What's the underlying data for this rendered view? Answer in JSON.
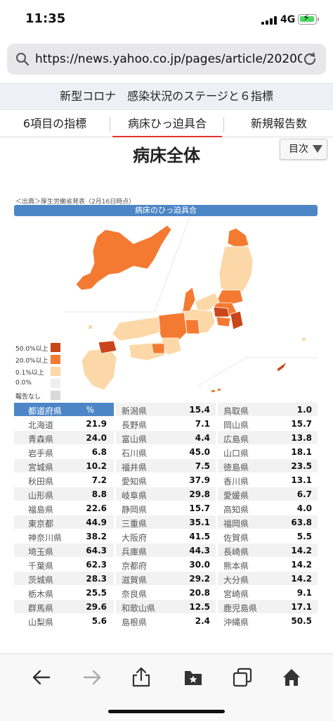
{
  "status": {
    "time": "11:35",
    "network": "4G"
  },
  "browser": {
    "url": "https://news.yahoo.co.jp/pages/article/202008..."
  },
  "article": {
    "title": "新型コロナ　感染状況のステージと６指標"
  },
  "tabs": [
    {
      "label": "6項目の指標"
    },
    {
      "label": "病床ひっ迫具合"
    },
    {
      "label": "新規報告数"
    }
  ],
  "section": {
    "title": "病床全体",
    "toc_label": "目次"
  },
  "infographic": {
    "source": "＜出典＞厚生労働省発表（2月16日時点）",
    "header": "病床のひっ迫具合",
    "legend": [
      {
        "label": "50.0%以上",
        "color": "#c9461a"
      },
      {
        "label": "20.0%以上",
        "color": "#f47a32"
      },
      {
        "label": "0.1%以上",
        "color": "#fcd8a8"
      },
      {
        "label": "0.0%",
        "color": "#eeeeee"
      },
      {
        "label": "報告なし",
        "color": "#d8d8d8"
      }
    ],
    "colors": {
      "high": "#c9461a",
      "mid": "#f47a32",
      "low": "#fcd8a8",
      "header": "#4c86c6"
    }
  },
  "table": {
    "head": {
      "name": "都道府県",
      "value": "%"
    },
    "col1": [
      {
        "name": "北海道",
        "value": "21.9"
      },
      {
        "name": "青森県",
        "value": "24.0"
      },
      {
        "name": "岩手県",
        "value": "6.8"
      },
      {
        "name": "宮城県",
        "value": "10.2"
      },
      {
        "name": "秋田県",
        "value": "7.2"
      },
      {
        "name": "山形県",
        "value": "8.8"
      },
      {
        "name": "福島県",
        "value": "22.6"
      },
      {
        "name": "東京都",
        "value": "44.9"
      },
      {
        "name": "神奈川県",
        "value": "38.2"
      },
      {
        "name": "埼玉県",
        "value": "64.3"
      },
      {
        "name": "千葉県",
        "value": "62.3"
      },
      {
        "name": "茨城県",
        "value": "28.3"
      },
      {
        "name": "栃木県",
        "value": "25.5"
      },
      {
        "name": "群馬県",
        "value": "29.6"
      },
      {
        "name": "山梨県",
        "value": "5.6"
      }
    ],
    "col2": [
      {
        "name": "新潟県",
        "value": "15.4"
      },
      {
        "name": "長野県",
        "value": "7.1"
      },
      {
        "name": "富山県",
        "value": "4.4"
      },
      {
        "name": "石川県",
        "value": "45.0"
      },
      {
        "name": "福井県",
        "value": "7.5"
      },
      {
        "name": "愛知県",
        "value": "37.9"
      },
      {
        "name": "岐阜県",
        "value": "29.8"
      },
      {
        "name": "静岡県",
        "value": "15.7"
      },
      {
        "name": "三重県",
        "value": "35.1"
      },
      {
        "name": "大阪府",
        "value": "41.5"
      },
      {
        "name": "兵庫県",
        "value": "44.3"
      },
      {
        "name": "京都府",
        "value": "30.0"
      },
      {
        "name": "滋賀県",
        "value": "29.2"
      },
      {
        "name": "奈良県",
        "value": "20.8"
      },
      {
        "name": "和歌山県",
        "value": "12.5"
      },
      {
        "name": "島根県",
        "value": "2.4"
      }
    ],
    "col3": [
      {
        "name": "鳥取県",
        "value": "1.0"
      },
      {
        "name": "岡山県",
        "value": "15.7"
      },
      {
        "name": "広島県",
        "value": "13.8"
      },
      {
        "name": "山口県",
        "value": "18.1"
      },
      {
        "name": "徳島県",
        "value": "23.5"
      },
      {
        "name": "香川県",
        "value": "13.1"
      },
      {
        "name": "愛媛県",
        "value": "6.7"
      },
      {
        "name": "高知県",
        "value": "4.0"
      },
      {
        "name": "福岡県",
        "value": "63.8"
      },
      {
        "name": "佐賀県",
        "value": "5.5"
      },
      {
        "name": "長崎県",
        "value": "14.2"
      },
      {
        "name": "熊本県",
        "value": "14.2"
      },
      {
        "name": "大分県",
        "value": "14.2"
      },
      {
        "name": "宮崎県",
        "value": "9.1"
      },
      {
        "name": "鹿児島県",
        "value": "17.1"
      },
      {
        "name": "沖縄県",
        "value": "50.5"
      }
    ]
  },
  "toolbar": {
    "icons": [
      "back-arrow-icon",
      "forward-arrow-icon",
      "share-icon",
      "bookmarks-icon",
      "tabs-icon",
      "home-icon"
    ]
  }
}
